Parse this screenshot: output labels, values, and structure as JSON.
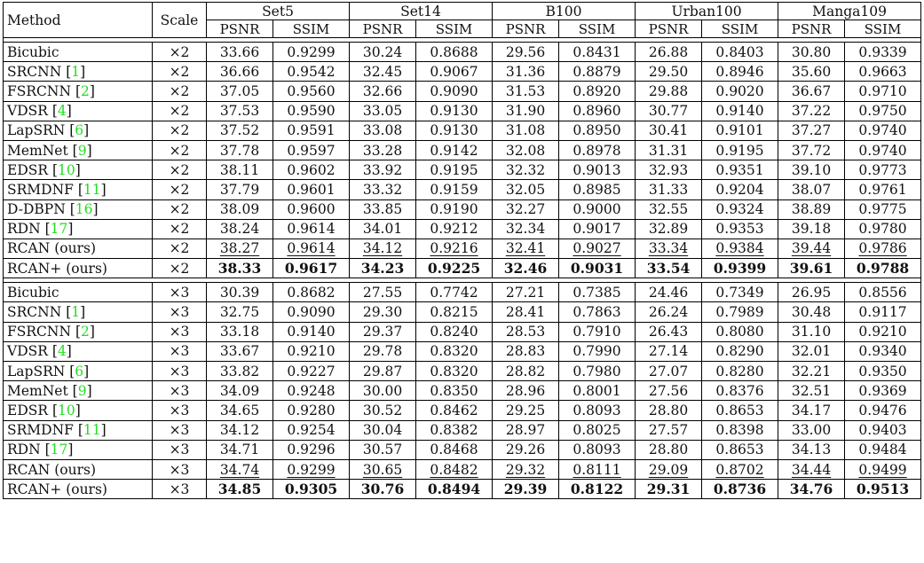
{
  "header": {
    "method": "Method",
    "scale": "Scale",
    "datasets": [
      "Set5",
      "Set14",
      "B100",
      "Urban100",
      "Manga109"
    ],
    "metrics": [
      "PSNR",
      "SSIM"
    ]
  },
  "groups": [
    {
      "rows": [
        {
          "method": "Bicubic",
          "ref": "",
          "scale": "×2",
          "values": [
            "33.66",
            "0.9299",
            "30.24",
            "0.8688",
            "29.56",
            "0.8431",
            "26.88",
            "0.8403",
            "30.80",
            "0.9339"
          ],
          "style": ""
        },
        {
          "method": "SRCNN ",
          "ref": "1",
          "scale": "×2",
          "values": [
            "36.66",
            "0.9542",
            "32.45",
            "0.9067",
            "31.36",
            "0.8879",
            "29.50",
            "0.8946",
            "35.60",
            "0.9663"
          ],
          "style": ""
        },
        {
          "method": "FSRCNN ",
          "ref": "2",
          "scale": "×2",
          "values": [
            "37.05",
            "0.9560",
            "32.66",
            "0.9090",
            "31.53",
            "0.8920",
            "29.88",
            "0.9020",
            "36.67",
            "0.9710"
          ],
          "style": ""
        },
        {
          "method": "VDSR ",
          "ref": "4",
          "scale": "×2",
          "values": [
            "37.53",
            "0.9590",
            "33.05",
            "0.9130",
            "31.90",
            "0.8960",
            "30.77",
            "0.9140",
            "37.22",
            "0.9750"
          ],
          "style": ""
        },
        {
          "method": "LapSRN ",
          "ref": "6",
          "scale": "×2",
          "values": [
            "37.52",
            "0.9591",
            "33.08",
            "0.9130",
            "31.08",
            "0.8950",
            "30.41",
            "0.9101",
            "37.27",
            "0.9740"
          ],
          "style": ""
        },
        {
          "method": "MemNet ",
          "ref": "9",
          "scale": "×2",
          "values": [
            "37.78",
            "0.9597",
            "33.28",
            "0.9142",
            "32.08",
            "0.8978",
            "31.31",
            "0.9195",
            "37.72",
            "0.9740"
          ],
          "style": ""
        },
        {
          "method": "EDSR ",
          "ref": "10",
          "scale": "×2",
          "values": [
            "38.11",
            "0.9602",
            "33.92",
            "0.9195",
            "32.32",
            "0.9013",
            "32.93",
            "0.9351",
            "39.10",
            "0.9773"
          ],
          "style": ""
        },
        {
          "method": "SRMDNF ",
          "ref": "11",
          "scale": "×2",
          "values": [
            "37.79",
            "0.9601",
            "33.32",
            "0.9159",
            "32.05",
            "0.8985",
            "31.33",
            "0.9204",
            "38.07",
            "0.9761"
          ],
          "style": ""
        },
        {
          "method": "D-DBPN ",
          "ref": "16",
          "scale": "×2",
          "values": [
            "38.09",
            "0.9600",
            "33.85",
            "0.9190",
            "32.27",
            "0.9000",
            "32.55",
            "0.9324",
            "38.89",
            "0.9775"
          ],
          "style": ""
        },
        {
          "method": "RDN ",
          "ref": "17",
          "scale": "×2",
          "values": [
            "38.24",
            "0.9614",
            "34.01",
            "0.9212",
            "32.34",
            "0.9017",
            "32.89",
            "0.9353",
            "39.18",
            "0.9780"
          ],
          "style": ""
        },
        {
          "method": "RCAN (ours)",
          "ref": "",
          "scale": "×2",
          "values": [
            "38.27",
            "0.9614",
            "34.12",
            "0.9216",
            "32.41",
            "0.9027",
            "33.34",
            "0.9384",
            "39.44",
            "0.9786"
          ],
          "style": "underline"
        },
        {
          "method": "RCAN+ (ours)",
          "ref": "",
          "scale": "×2",
          "values": [
            "38.33",
            "0.9617",
            "34.23",
            "0.9225",
            "32.46",
            "0.9031",
            "33.54",
            "0.9399",
            "39.61",
            "0.9788"
          ],
          "style": "bold"
        }
      ]
    },
    {
      "rows": [
        {
          "method": "Bicubic",
          "ref": "",
          "scale": "×3",
          "values": [
            "30.39",
            "0.8682",
            "27.55",
            "0.7742",
            "27.21",
            "0.7385",
            "24.46",
            "0.7349",
            "26.95",
            "0.8556"
          ],
          "style": ""
        },
        {
          "method": "SRCNN ",
          "ref": "1",
          "scale": "×3",
          "values": [
            "32.75",
            "0.9090",
            "29.30",
            "0.8215",
            "28.41",
            "0.7863",
            "26.24",
            "0.7989",
            "30.48",
            "0.9117"
          ],
          "style": ""
        },
        {
          "method": "FSRCNN ",
          "ref": "2",
          "scale": "×3",
          "values": [
            "33.18",
            "0.9140",
            "29.37",
            "0.8240",
            "28.53",
            "0.7910",
            "26.43",
            "0.8080",
            "31.10",
            "0.9210"
          ],
          "style": ""
        },
        {
          "method": "VDSR ",
          "ref": "4",
          "scale": "×3",
          "values": [
            "33.67",
            "0.9210",
            "29.78",
            "0.8320",
            "28.83",
            "0.7990",
            "27.14",
            "0.8290",
            "32.01",
            "0.9340"
          ],
          "style": ""
        },
        {
          "method": "LapSRN ",
          "ref": "6",
          "scale": "×3",
          "values": [
            "33.82",
            "0.9227",
            "29.87",
            "0.8320",
            "28.82",
            "0.7980",
            "27.07",
            "0.8280",
            "32.21",
            "0.9350"
          ],
          "style": ""
        },
        {
          "method": "MemNet ",
          "ref": "9",
          "scale": "×3",
          "values": [
            "34.09",
            "0.9248",
            "30.00",
            "0.8350",
            "28.96",
            "0.8001",
            "27.56",
            "0.8376",
            "32.51",
            "0.9369"
          ],
          "style": ""
        },
        {
          "method": "EDSR ",
          "ref": "10",
          "scale": "×3",
          "values": [
            "34.65",
            "0.9280",
            "30.52",
            "0.8462",
            "29.25",
            "0.8093",
            "28.80",
            "0.8653",
            "34.17",
            "0.9476"
          ],
          "style": ""
        },
        {
          "method": "SRMDNF ",
          "ref": "11",
          "scale": "×3",
          "values": [
            "34.12",
            "0.9254",
            "30.04",
            "0.8382",
            "28.97",
            "0.8025",
            "27.57",
            "0.8398",
            "33.00",
            "0.9403"
          ],
          "style": ""
        },
        {
          "method": "RDN ",
          "ref": "17",
          "scale": "×3",
          "values": [
            "34.71",
            "0.9296",
            "30.57",
            "0.8468",
            "29.26",
            "0.8093",
            "28.80",
            "0.8653",
            "34.13",
            "0.9484"
          ],
          "style": ""
        },
        {
          "method": "RCAN (ours)",
          "ref": "",
          "scale": "×3",
          "values": [
            "34.74",
            "0.9299",
            "30.65",
            "0.8482",
            "29.32",
            "0.8111",
            "29.09",
            "0.8702",
            "34.44",
            "0.9499"
          ],
          "style": "underline"
        },
        {
          "method": "RCAN+ (ours)",
          "ref": "",
          "scale": "×3",
          "values": [
            "34.85",
            "0.9305",
            "30.76",
            "0.8494",
            "29.39",
            "0.8122",
            "29.31",
            "0.8736",
            "34.76",
            "0.9513"
          ],
          "style": "bold"
        }
      ]
    }
  ],
  "colors": {
    "citation": "#22dd22",
    "text": "#111111",
    "rule": "#000000"
  }
}
